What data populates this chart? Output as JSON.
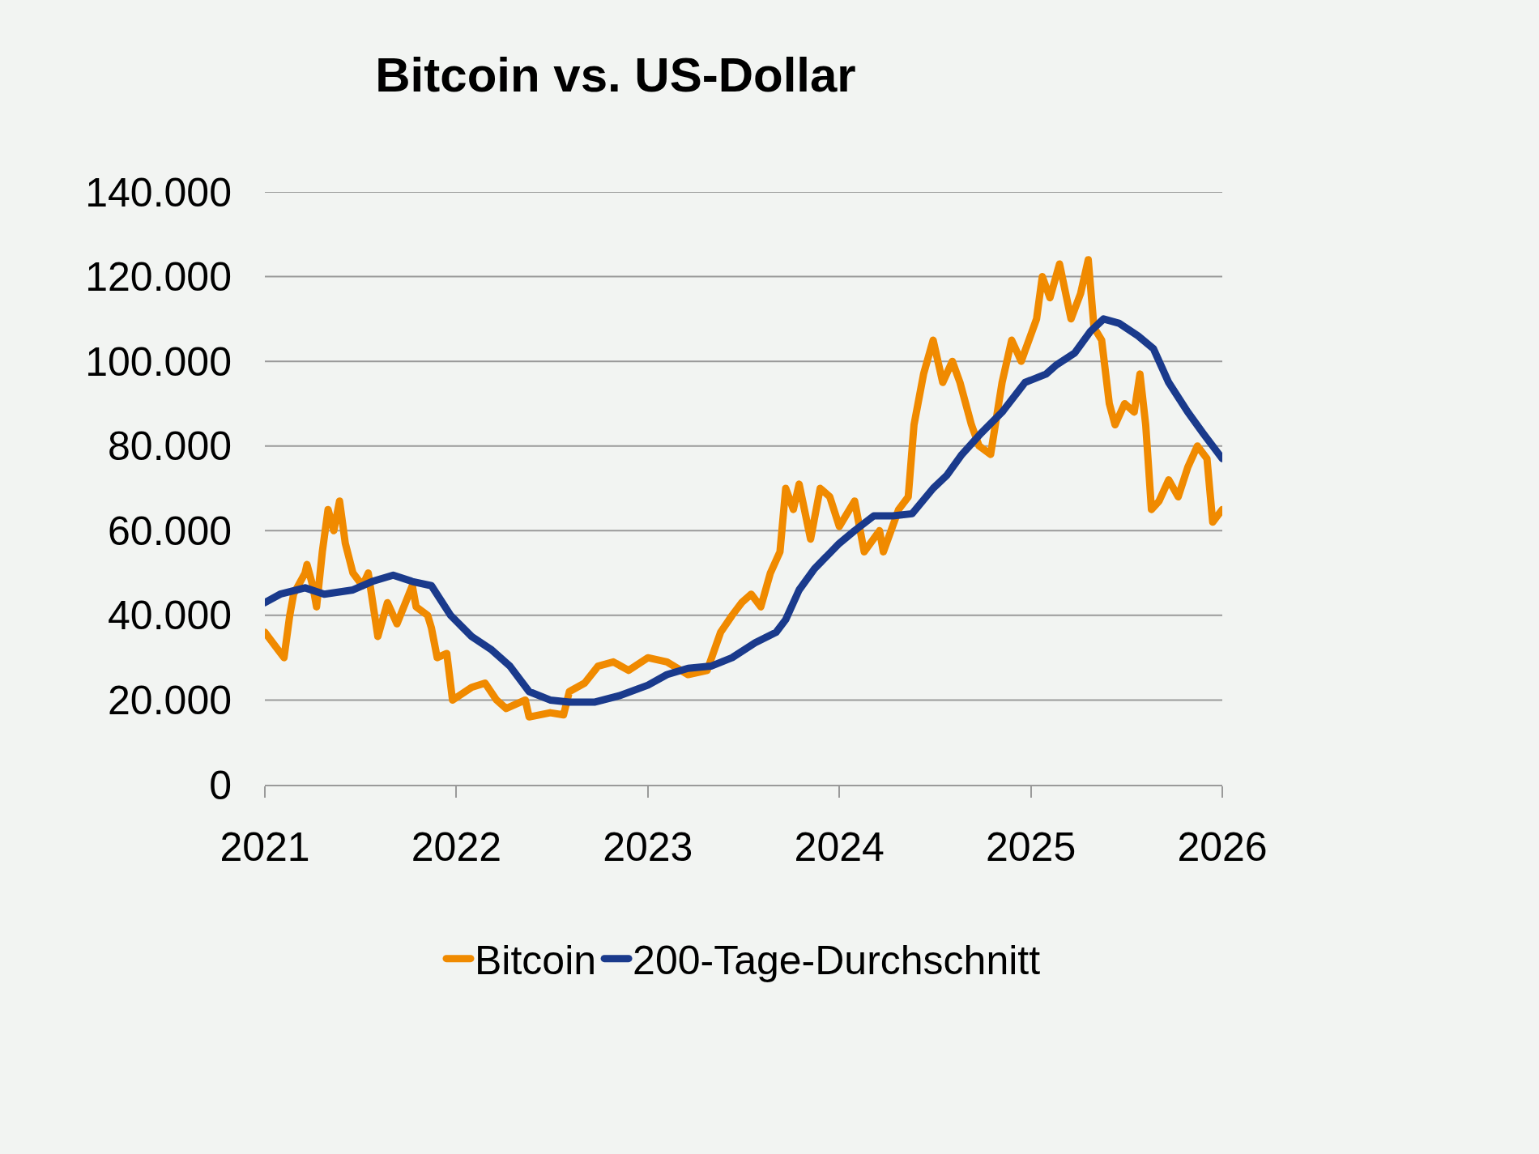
{
  "chart_data": {
    "type": "line",
    "title": "Bitcoin vs. US-Dollar",
    "xlim": [
      2021,
      2026
    ],
    "xticks": [
      2021,
      2022,
      2023,
      2024,
      2025,
      2026
    ],
    "ylim": [
      0,
      140000
    ],
    "yticks": [
      {
        "value": 0,
        "label": "0"
      },
      {
        "value": 20000,
        "label": "20.000"
      },
      {
        "value": 40000,
        "label": "40.000"
      },
      {
        "value": 60000,
        "label": "60.000"
      },
      {
        "value": 80000,
        "label": "80.000"
      },
      {
        "value": 100000,
        "label": "100.000"
      },
      {
        "value": 120000,
        "label": "120.000"
      },
      {
        "value": 140000,
        "label": "140.000"
      }
    ],
    "grid": "y",
    "legend": "bottom",
    "line_style": "solid",
    "marker": "none",
    "series": [
      {
        "name": "Bitcoin",
        "color": "#f08a00",
        "x": [
          2021.0,
          2021.05,
          2021.1,
          2021.13,
          2021.15,
          2021.21,
          2021.22,
          2021.25,
          2021.27,
          2021.3,
          2021.33,
          2021.36,
          2021.39,
          2021.42,
          2021.46,
          2021.51,
          2021.54,
          2021.59,
          2021.64,
          2021.69,
          2021.77,
          2021.79,
          2021.85,
          2021.87,
          2021.9,
          2021.95,
          2021.98,
          2022.08,
          2022.15,
          2022.21,
          2022.26,
          2022.36,
          2022.38,
          2022.49,
          2022.56,
          2022.59,
          2022.67,
          2022.74,
          2022.82,
          2022.9,
          2023.0,
          2023.1,
          2023.21,
          2023.31,
          2023.38,
          2023.44,
          2023.49,
          2023.54,
          2023.59,
          2023.64,
          2023.69,
          2023.72,
          2023.76,
          2023.79,
          2023.85,
          2023.9,
          2023.95,
          2024.0,
          2024.08,
          2024.13,
          2024.21,
          2024.23,
          2024.31,
          2024.36,
          2024.39,
          2024.44,
          2024.49,
          2024.54,
          2024.59,
          2024.63,
          2024.69,
          2024.73,
          2024.79,
          2024.85,
          2024.9,
          2024.95,
          2025.03,
          2025.06,
          2025.1,
          2025.15,
          2025.21,
          2025.26,
          2025.3,
          2025.33,
          2025.37,
          2025.41,
          2025.44,
          2025.49,
          2025.54,
          2025.57,
          2025.6,
          2025.63,
          2025.67,
          2025.72,
          2025.77,
          2025.82,
          2025.87,
          2025.92,
          2025.95,
          2026.0
        ],
        "values": [
          36000,
          33000,
          30000,
          40000,
          45000,
          50000,
          52000,
          47000,
          42000,
          55000,
          65000,
          60000,
          67000,
          57000,
          50000,
          47000,
          50000,
          35000,
          43000,
          38000,
          47000,
          42000,
          40000,
          37000,
          30000,
          31000,
          20000,
          23000,
          24000,
          20000,
          18000,
          20000,
          16000,
          17000,
          16500,
          22000,
          24000,
          28000,
          29000,
          27000,
          30000,
          29000,
          26000,
          27000,
          36000,
          40000,
          43000,
          45000,
          42000,
          50000,
          55000,
          70000,
          65000,
          71000,
          58000,
          70000,
          68000,
          61000,
          67000,
          55000,
          60000,
          55000,
          65000,
          68000,
          85000,
          97000,
          105000,
          95000,
          100000,
          95000,
          85000,
          80000,
          78000,
          95000,
          105000,
          100000,
          110000,
          120000,
          115000,
          123000,
          110000,
          116000,
          124000,
          108000,
          105000,
          90000,
          85000,
          90000,
          88000,
          97000,
          85000,
          65000,
          67000,
          72000,
          68000,
          75000,
          80000,
          77000,
          62000,
          65000
        ]
      },
      {
        "name": "200-Tage-Durchschnitt",
        "color": "#1a3a8c",
        "x": [
          2021.0,
          2021.08,
          2021.21,
          2021.31,
          2021.46,
          2021.56,
          2021.67,
          2021.77,
          2021.87,
          2021.97,
          2022.08,
          2022.18,
          2022.28,
          2022.38,
          2022.49,
          2022.59,
          2022.72,
          2022.85,
          2023.0,
          2023.1,
          2023.21,
          2023.33,
          2023.44,
          2023.56,
          2023.67,
          2023.72,
          2023.79,
          2023.87,
          2024.0,
          2024.08,
          2024.18,
          2024.28,
          2024.38,
          2024.49,
          2024.56,
          2024.64,
          2024.74,
          2024.85,
          2024.97,
          2025.08,
          2025.13,
          2025.23,
          2025.31,
          2025.38,
          2025.46,
          2025.56,
          2025.64,
          2025.72,
          2025.82,
          2025.9,
          2026.0
        ],
        "values": [
          43000,
          45000,
          46500,
          45000,
          46000,
          48000,
          49500,
          48000,
          47000,
          40000,
          35000,
          32000,
          28000,
          22000,
          20000,
          19500,
          19500,
          21000,
          23500,
          26000,
          27500,
          28000,
          30000,
          33500,
          36000,
          39000,
          46000,
          51000,
          57000,
          60000,
          63500,
          63500,
          64000,
          70000,
          73000,
          78000,
          83000,
          88000,
          95000,
          97000,
          99000,
          102000,
          107000,
          110000,
          109000,
          106000,
          103000,
          95000,
          88000,
          83000,
          77000
        ]
      }
    ]
  }
}
